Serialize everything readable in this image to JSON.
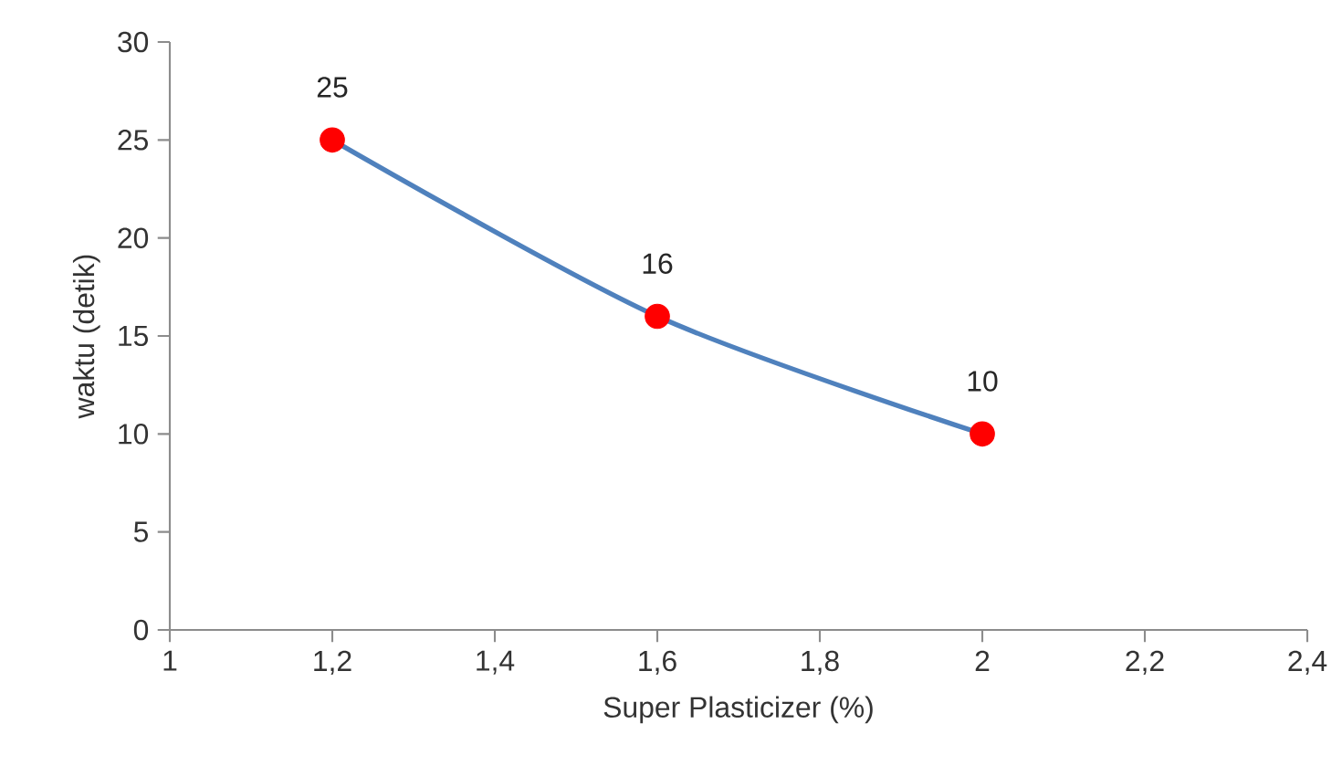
{
  "chart_data": {
    "type": "line",
    "xlabel": "Super Plasticizer (%)",
    "ylabel": "waktu (detik)",
    "x": [
      1.2,
      1.6,
      2
    ],
    "series": [
      {
        "color": "#4f81bd",
        "colors": [
          "#ff0000",
          "#ff0000",
          "#ff0000"
        ],
        "values": [
          25,
          16,
          10
        ]
      }
    ],
    "marker": "circle",
    "data_labels": true,
    "xlim": [
      1,
      2.4
    ],
    "xticks": [
      1,
      {
        "value": 1.2,
        "label": "1,2"
      },
      {
        "value": 1.4,
        "label": "1,4"
      },
      {
        "value": 1.6,
        "label": "1,6"
      },
      {
        "value": 1.8,
        "label": "1,8"
      },
      2,
      {
        "value": 2.2,
        "label": "2,2"
      },
      {
        "value": 2.4,
        "label": "2,4"
      }
    ],
    "ylim": [
      0,
      30
    ],
    "yticks": [
      0,
      5,
      10,
      15,
      20,
      25,
      30
    ]
  }
}
